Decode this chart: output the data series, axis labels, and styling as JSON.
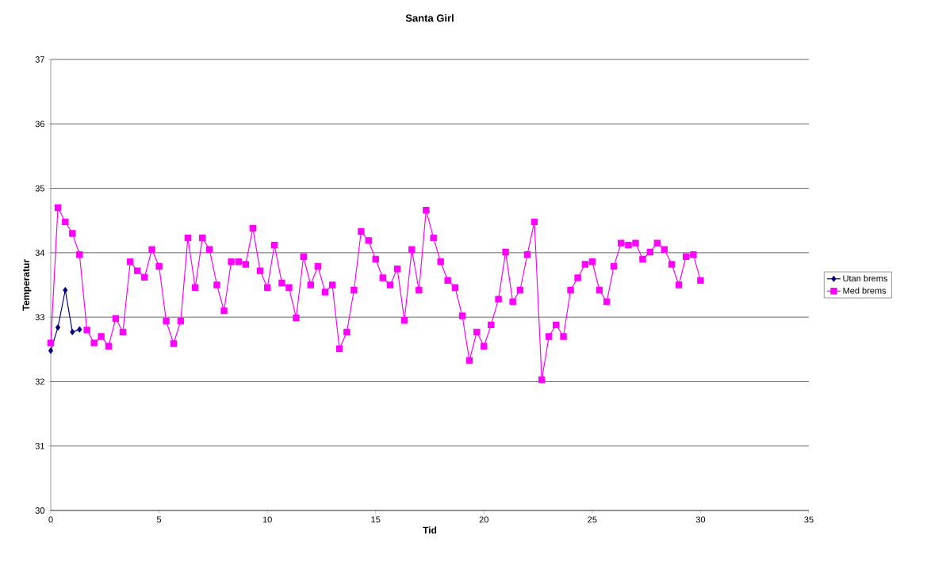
{
  "chart_data": {
    "type": "line",
    "title": "Santa Girl",
    "xlabel": "Tid",
    "ylabel": "Temperatur",
    "xlim": [
      0,
      35
    ],
    "xticks": [
      0,
      5,
      10,
      15,
      20,
      25,
      30,
      35
    ],
    "ylim": [
      30,
      37
    ],
    "yticks": [
      30,
      31,
      32,
      33,
      34,
      35,
      36,
      37
    ],
    "grid": "y",
    "legend": "right",
    "line_style": "solid",
    "series": [
      {
        "name": "Utan brems",
        "color": "#000080",
        "marker": "diamond",
        "x": [
          0,
          0.33,
          0.67,
          1,
          1.33
        ],
        "values": [
          32.48,
          32.84,
          33.42,
          32.77,
          32.81
        ]
      },
      {
        "name": "Med brems",
        "color": "#ff00ff",
        "marker": "square",
        "x": [
          0,
          0.33,
          0.67,
          1,
          1.33,
          1.67,
          2,
          2.33,
          2.67,
          3,
          3.33,
          3.67,
          4,
          4.33,
          4.67,
          5,
          5.33,
          5.67,
          6,
          6.33,
          6.67,
          7,
          7.33,
          7.67,
          8,
          8.33,
          8.67,
          9,
          9.33,
          9.67,
          10,
          10.33,
          10.67,
          11,
          11.33,
          11.67,
          12,
          12.33,
          12.67,
          13,
          13.33,
          13.67,
          14,
          14.33,
          14.67,
          15,
          15.33,
          15.67,
          16,
          16.33,
          16.67,
          17,
          17.33,
          17.67,
          18,
          18.33,
          18.67,
          19,
          19.33,
          19.67,
          20,
          20.33,
          20.67,
          21,
          21.33,
          21.67,
          22,
          22.33,
          22.67,
          23,
          23.33,
          23.67,
          24,
          24.33,
          24.67,
          25,
          25.33,
          25.67,
          26,
          26.33,
          26.67,
          27,
          27.33,
          27.67,
          28,
          28.33,
          28.67,
          29,
          29.33,
          29.67,
          30
        ],
        "values": [
          32.6,
          34.7,
          34.48,
          34.3,
          33.97,
          32.8,
          32.6,
          32.7,
          32.55,
          32.98,
          32.77,
          33.86,
          33.72,
          33.62,
          34.05,
          33.79,
          32.94,
          32.59,
          32.94,
          34.23,
          33.46,
          34.23,
          34.05,
          33.5,
          33.1,
          33.86,
          33.86,
          33.82,
          34.38,
          33.72,
          33.46,
          34.12,
          33.53,
          33.46,
          32.99,
          33.94,
          33.5,
          33.79,
          33.39,
          33.5,
          32.51,
          32.77,
          33.42,
          34.33,
          34.19,
          33.9,
          33.61,
          33.5,
          33.75,
          32.95,
          34.05,
          33.42,
          34.66,
          34.23,
          33.86,
          33.57,
          33.46,
          33.02,
          32.33,
          32.77,
          32.55,
          32.88,
          33.28,
          34.01,
          33.24,
          33.42,
          33.97,
          34.48,
          32.03,
          32.7,
          32.88,
          32.7,
          33.42,
          33.61,
          33.82,
          33.86,
          33.42,
          33.24,
          33.79,
          34.15,
          34.12,
          34.15,
          33.9,
          34.01,
          34.15,
          34.05,
          33.82,
          33.5,
          33.94,
          33.97,
          33.57
        ]
      }
    ]
  }
}
